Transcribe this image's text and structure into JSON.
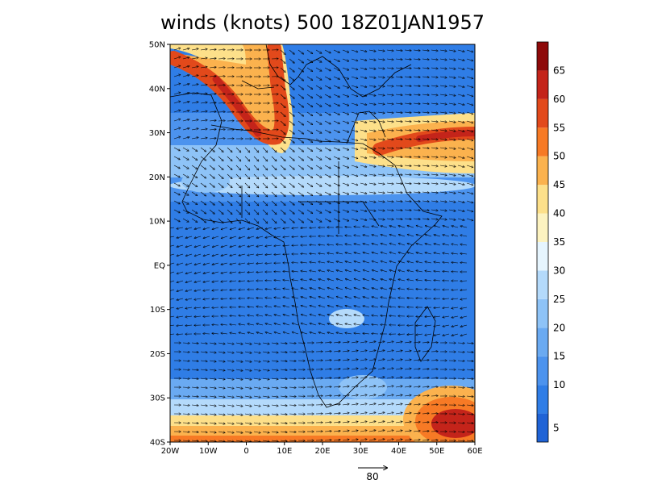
{
  "title": "winds (knots) 500 18Z01JAN1957",
  "map": {
    "lon_range": [
      -20,
      60
    ],
    "lat_range": [
      -40,
      50
    ],
    "lon_tick_labels": [
      "20W",
      "10W",
      "0",
      "10E",
      "20E",
      "30E",
      "40E",
      "50E",
      "60E"
    ],
    "lat_tick_labels": [
      "50N",
      "40N",
      "30N",
      "20N",
      "10N",
      "EQ",
      "10S",
      "20S",
      "30S",
      "40S"
    ]
  },
  "colorbar": {
    "labels": [
      "5",
      "10",
      "15",
      "20",
      "25",
      "30",
      "35",
      "40",
      "45",
      "50",
      "55",
      "60",
      "65"
    ],
    "colors": [
      "#1f63d6",
      "#2f7de6",
      "#4c93ee",
      "#6aaaf2",
      "#8ec3f7",
      "#b4dafb",
      "#e6f5fe",
      "#fdf3c0",
      "#fde08a",
      "#fbb24e",
      "#f77a25",
      "#e2491b",
      "#c4241a",
      "#8e0a0a"
    ]
  },
  "reference_vector": {
    "label": "80",
    "magnitude": 80
  },
  "colors": {
    "background": "#ffffff",
    "continent_outline": "#000000",
    "vector": "#000000"
  }
}
